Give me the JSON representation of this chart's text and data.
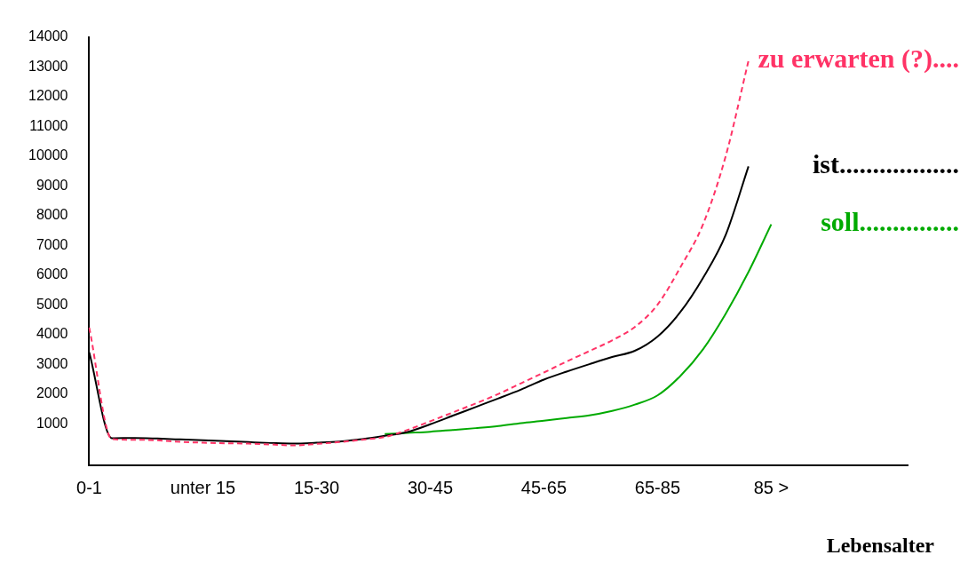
{
  "chart_data": {
    "type": "line",
    "xlabel": "Lebensalter",
    "ylim": [
      -400,
      14000
    ],
    "categories": [
      "0-1",
      null,
      null,
      null,
      null,
      "unter 15",
      null,
      null,
      null,
      null,
      "15-30",
      null,
      null,
      null,
      null,
      "30-45",
      null,
      null,
      null,
      null,
      "45-65",
      null,
      null,
      null,
      null,
      "65-85",
      null,
      null,
      null,
      null,
      "85 >",
      null,
      null,
      null,
      null,
      null,
      null
    ],
    "yticks": [
      1000,
      2000,
      3000,
      4000,
      5000,
      6000,
      7000,
      8000,
      9000,
      10000,
      11000,
      12000,
      13000,
      14000
    ],
    "grid": false,
    "legend": false,
    "marker": "none",
    "series": [
      {
        "name": "zu erwarten (?)....",
        "color": "#ff3366",
        "line_style": "dashed",
        "values": [
          4230,
          480,
          460,
          440,
          390,
          360,
          340,
          330,
          300,
          270,
          320,
          380,
          460,
          550,
          790,
          1080,
          1380,
          1680,
          2000,
          2360,
          2720,
          3090,
          3440,
          3800,
          4250,
          5000,
          6250,
          7700,
          10000,
          13200,
          null,
          null,
          null,
          null,
          null,
          null,
          null
        ]
      },
      {
        "name": "ist..................",
        "color": "#000000",
        "line_style": "solid",
        "values": [
          3400,
          510,
          520,
          500,
          470,
          440,
          410,
          380,
          350,
          330,
          360,
          400,
          480,
          590,
          720,
          980,
          1270,
          1560,
          1850,
          2150,
          2480,
          2750,
          3000,
          3240,
          3450,
          3930,
          4750,
          5900,
          7350,
          9650,
          null,
          null,
          null,
          null,
          null,
          null,
          null
        ]
      },
      {
        "name": "soll...............",
        "color": "#00aa00",
        "line_style": "solid",
        "values": [
          null,
          null,
          null,
          null,
          null,
          null,
          null,
          null,
          null,
          null,
          null,
          null,
          null,
          650,
          690,
          730,
          790,
          850,
          920,
          1020,
          1100,
          1190,
          1280,
          1430,
          1640,
          1950,
          2600,
          3500,
          4700,
          6100,
          7700,
          null,
          null,
          null,
          null,
          null,
          null
        ]
      }
    ]
  }
}
